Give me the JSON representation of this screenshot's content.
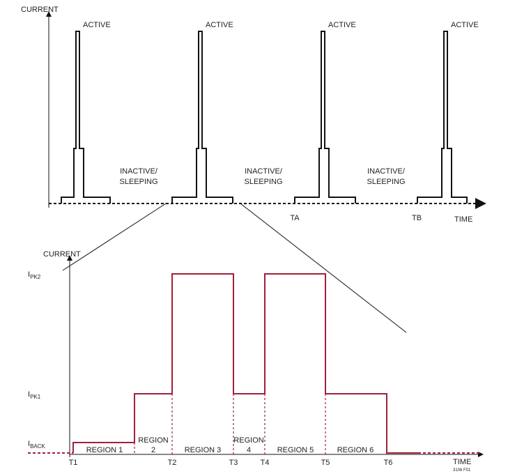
{
  "top": {
    "y_axis_label": "CURRENT",
    "x_axis_label": "TIME",
    "pulses": [
      "ACTIVE",
      "ACTIVE",
      "ACTIVE",
      "ACTIVE"
    ],
    "sleeping": [
      [
        "INACTIVE/",
        "SLEEPING"
      ],
      [
        "INACTIVE/",
        "SLEEPING"
      ],
      [
        "INACTIVE/",
        "SLEEPING"
      ]
    ],
    "time_marks": [
      "TA",
      "TB"
    ]
  },
  "bottom": {
    "y_axis_label": "CURRENT",
    "x_axis_label": "TIME",
    "levels": [
      {
        "main": "I",
        "sub": "PK2"
      },
      {
        "main": "I",
        "sub": "PK1"
      },
      {
        "main": "I",
        "sub": "BACK"
      }
    ],
    "regions": [
      [
        "REGION 1"
      ],
      [
        "REGION",
        "2"
      ],
      [
        "REGION 3"
      ],
      [
        "REGION",
        "4"
      ],
      [
        "REGION 5"
      ],
      [
        "REGION 6"
      ]
    ],
    "times": [
      "T1",
      "T2",
      "T3",
      "T4",
      "T5",
      "T6"
    ],
    "figure_id": "3106 F01"
  }
}
